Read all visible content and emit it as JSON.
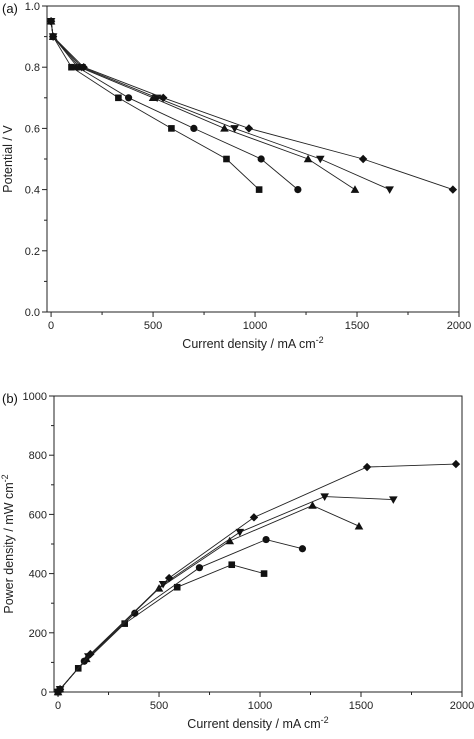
{
  "chart_data": [
    {
      "panel_label": "(a)",
      "type": "line",
      "xlabel": "Current density / mA cm",
      "xlabel_sup": "-2",
      "ylabel": "Potential / V",
      "xlim": [
        -20,
        2000
      ],
      "ylim": [
        0.0,
        1.0
      ],
      "xticks": [
        "0",
        "500",
        "1000",
        "1500",
        "2000"
      ],
      "yticks": [
        "0.0",
        "0.2",
        "0.4",
        "0.6",
        "0.8",
        "1.0"
      ],
      "grid": false,
      "series": [
        {
          "marker": "square",
          "x": [
            0,
            10,
            100,
            330,
            590,
            860,
            1020
          ],
          "y": [
            0.95,
            0.9,
            0.8,
            0.7,
            0.6,
            0.5,
            0.4
          ]
        },
        {
          "marker": "circle",
          "x": [
            0,
            10,
            130,
            380,
            700,
            1030,
            1210
          ],
          "y": [
            0.95,
            0.9,
            0.8,
            0.7,
            0.6,
            0.5,
            0.4
          ]
        },
        {
          "marker": "triangle-up",
          "x": [
            0,
            10,
            140,
            500,
            850,
            1260,
            1490
          ],
          "y": [
            0.95,
            0.9,
            0.8,
            0.7,
            0.6,
            0.5,
            0.4
          ]
        },
        {
          "marker": "triangle-down",
          "x": [
            0,
            10,
            150,
            520,
            900,
            1320,
            1660
          ],
          "y": [
            0.95,
            0.9,
            0.8,
            0.7,
            0.6,
            0.5,
            0.4
          ]
        },
        {
          "marker": "diamond",
          "x": [
            0,
            10,
            160,
            550,
            970,
            1530,
            1970
          ],
          "y": [
            0.95,
            0.9,
            0.8,
            0.7,
            0.6,
            0.5,
            0.4
          ]
        }
      ]
    },
    {
      "panel_label": "(b)",
      "type": "line",
      "xlabel": "Current density / mA cm",
      "xlabel_sup": "-2",
      "ylabel": "Power density / mW cm",
      "ylabel_sup": "-2",
      "xlim": [
        -20,
        2000
      ],
      "ylim": [
        0,
        1000
      ],
      "xticks": [
        "0",
        "500",
        "1000",
        "1500",
        "2000"
      ],
      "yticks": [
        "0",
        "200",
        "400",
        "600",
        "800",
        "1000"
      ],
      "grid": false,
      "series": [
        {
          "marker": "square",
          "x": [
            0,
            10,
            100,
            330,
            590,
            860,
            1020
          ],
          "y": [
            0,
            9,
            80,
            231,
            354,
            430,
            400
          ]
        },
        {
          "marker": "circle",
          "x": [
            0,
            10,
            130,
            380,
            700,
            1030,
            1210
          ],
          "y": [
            0,
            9,
            104,
            266,
            420,
            515,
            484
          ]
        },
        {
          "marker": "triangle-up",
          "x": [
            0,
            10,
            140,
            500,
            850,
            1260,
            1490
          ],
          "y": [
            0,
            9,
            112,
            350,
            510,
            630,
            560
          ]
        },
        {
          "marker": "triangle-down",
          "x": [
            0,
            10,
            150,
            520,
            900,
            1320,
            1660
          ],
          "y": [
            0,
            9,
            120,
            364,
            540,
            660,
            650
          ]
        },
        {
          "marker": "diamond",
          "x": [
            0,
            10,
            160,
            550,
            970,
            1530,
            1970
          ],
          "y": [
            0,
            9,
            128,
            385,
            590,
            760,
            770
          ]
        }
      ]
    }
  ]
}
